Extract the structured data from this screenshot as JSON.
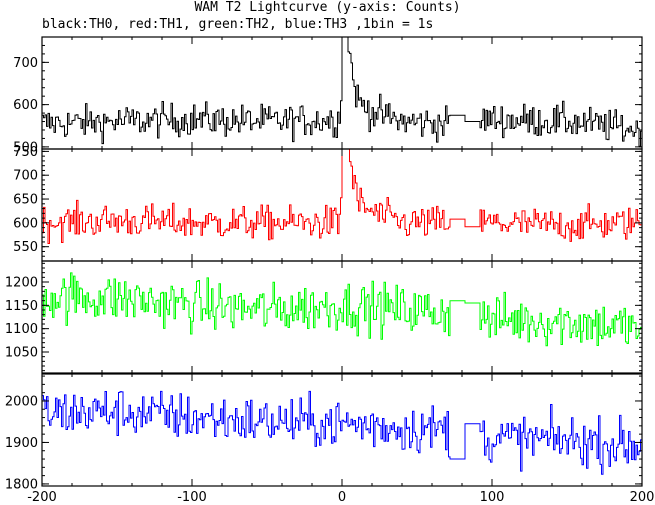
{
  "chart_data": {
    "type": "line",
    "title": "WAM T2 Lightcurve (y-axis: Counts)",
    "subtitle": "black:TH0, red:TH1, green:TH2, blue:TH3 ,1bin = 1s",
    "xlabel": "",
    "ylabel": "",
    "xlim": [
      -200,
      200
    ],
    "x_ticks": [
      -200,
      -100,
      0,
      100,
      200
    ],
    "gap": [
      72,
      92
    ],
    "grid": false,
    "panels": [
      {
        "name": "TH0",
        "color": "#000000",
        "ylim": [
          495,
          760
        ],
        "y_ticks": [
          500,
          600,
          700
        ],
        "baseline": 560,
        "noise": 28,
        "gap_level": [
          575,
          560
        ],
        "peak": {
          "x": 0,
          "value": 760,
          "decay_s": 4,
          "tail_s": 7,
          "tail_level": 40
        },
        "samples": [
          {
            "x": -200,
            "y": 555
          },
          {
            "x": -150,
            "y": 560
          },
          {
            "x": -100,
            "y": 565
          },
          {
            "x": -50,
            "y": 560
          },
          {
            "x": -2,
            "y": 565
          },
          {
            "x": 1,
            "y": 760
          },
          {
            "x": 5,
            "y": 640
          },
          {
            "x": 10,
            "y": 590
          },
          {
            "x": 40,
            "y": 560
          },
          {
            "x": 70,
            "y": 555
          },
          {
            "x": 95,
            "y": 565
          },
          {
            "x": 150,
            "y": 560
          },
          {
            "x": 199,
            "y": 540
          }
        ]
      },
      {
        "name": "TH1",
        "color": "#ff0000",
        "ylim": [
          520,
          755
        ],
        "y_ticks": [
          550,
          600,
          650,
          700,
          750
        ],
        "baseline": 600,
        "noise": 25,
        "gap_level": [
          608,
          592
        ],
        "peak": {
          "x": 0,
          "value": 750,
          "decay_s": 4,
          "tail_s": 7,
          "tail_level": 30
        },
        "samples": [
          {
            "x": -200,
            "y": 600
          },
          {
            "x": -150,
            "y": 605
          },
          {
            "x": -100,
            "y": 600
          },
          {
            "x": -50,
            "y": 600
          },
          {
            "x": -2,
            "y": 600
          },
          {
            "x": 1,
            "y": 750
          },
          {
            "x": 5,
            "y": 680
          },
          {
            "x": 10,
            "y": 630
          },
          {
            "x": 40,
            "y": 600
          },
          {
            "x": 70,
            "y": 600
          },
          {
            "x": 95,
            "y": 600
          },
          {
            "x": 150,
            "y": 595
          },
          {
            "x": 199,
            "y": 600
          }
        ]
      },
      {
        "name": "TH2",
        "color": "#00ff00",
        "ylim": [
          1005,
          1245
        ],
        "y_ticks": [
          1050,
          1100,
          1150,
          1200
        ],
        "baseline": 1150,
        "noise": 38,
        "gap_level": [
          1160,
          1155
        ],
        "peak": null,
        "samples": [
          {
            "x": -200,
            "y": 1170
          },
          {
            "x": -150,
            "y": 1165
          },
          {
            "x": -100,
            "y": 1150
          },
          {
            "x": -50,
            "y": 1140
          },
          {
            "x": 0,
            "y": 1150
          },
          {
            "x": 40,
            "y": 1140
          },
          {
            "x": 70,
            "y": 1135
          },
          {
            "x": 95,
            "y": 1120
          },
          {
            "x": 150,
            "y": 1115
          },
          {
            "x": 199,
            "y": 1100
          }
        ]
      },
      {
        "name": "TH3",
        "color": "#0000ff",
        "ylim": [
          1795,
          2065
        ],
        "y_ticks": [
          1800,
          1900,
          2000
        ],
        "baseline": 1950,
        "noise": 42,
        "gap_level": [
          1860,
          1945
        ],
        "peak": null,
        "samples": [
          {
            "x": -200,
            "y": 1970
          },
          {
            "x": -150,
            "y": 1975
          },
          {
            "x": -100,
            "y": 1960
          },
          {
            "x": -50,
            "y": 1950
          },
          {
            "x": 0,
            "y": 1945
          },
          {
            "x": 40,
            "y": 1935
          },
          {
            "x": 70,
            "y": 1930
          },
          {
            "x": 95,
            "y": 1910
          },
          {
            "x": 150,
            "y": 1905
          },
          {
            "x": 199,
            "y": 1890
          }
        ]
      }
    ]
  }
}
